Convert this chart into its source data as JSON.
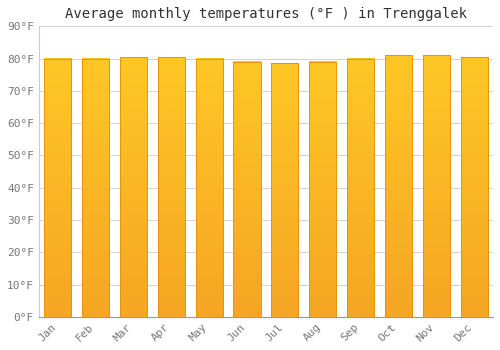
{
  "title": "Average monthly temperatures (°F ) in Trenggalek",
  "months": [
    "Jan",
    "Feb",
    "Mar",
    "Apr",
    "May",
    "Jun",
    "Jul",
    "Aug",
    "Sep",
    "Oct",
    "Nov",
    "Dec"
  ],
  "values": [
    80,
    80,
    80.5,
    80.5,
    80,
    79,
    78.5,
    79,
    80,
    81,
    81,
    80.5
  ],
  "ylim": [
    0,
    90
  ],
  "yticks": [
    0,
    10,
    20,
    30,
    40,
    50,
    60,
    70,
    80,
    90
  ],
  "ytick_labels": [
    "0°F",
    "10°F",
    "20°F",
    "30°F",
    "40°F",
    "50°F",
    "60°F",
    "70°F",
    "80°F",
    "90°F"
  ],
  "bar_color_top": "#FFC726",
  "bar_color_bottom": "#F5A623",
  "bar_edge_color": "#E8940A",
  "background_color": "#FFFFFF",
  "grid_color": "#CCCCCC",
  "title_fontsize": 10,
  "tick_fontsize": 8,
  "tick_color": "#777777",
  "font_family": "monospace",
  "bar_width": 0.72
}
